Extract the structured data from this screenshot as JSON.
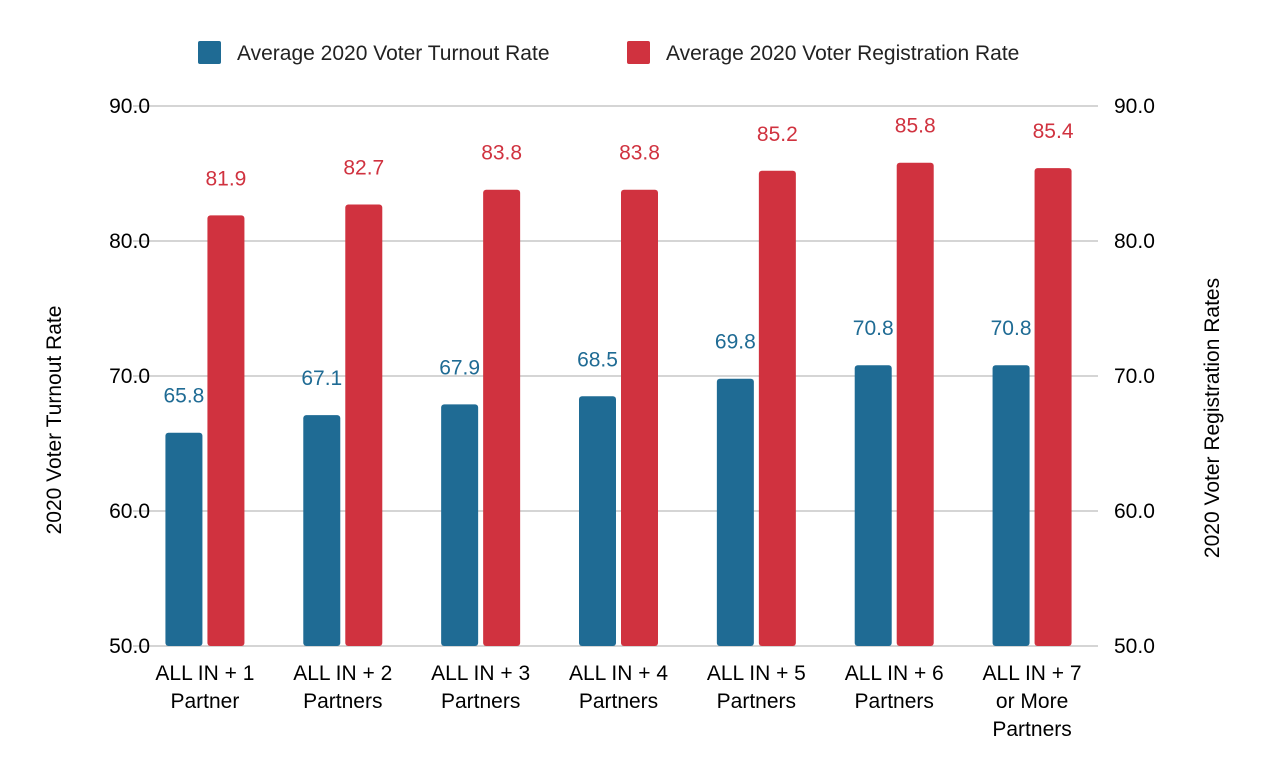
{
  "chart_data": {
    "type": "bar",
    "categories": [
      [
        "ALL IN + 1",
        "Partner"
      ],
      [
        "ALL IN + 2",
        "Partners"
      ],
      [
        "ALL IN + 3",
        "Partners"
      ],
      [
        "ALL IN + 4",
        "Partners"
      ],
      [
        "ALL IN + 5",
        "Partners"
      ],
      [
        "ALL IN + 6",
        "Partners"
      ],
      [
        "ALL IN + 7",
        "or More",
        "Partners"
      ]
    ],
    "series": [
      {
        "name": "Average 2020 Voter Turnout Rate",
        "color": "#1f6b94",
        "axis": "left",
        "values": [
          65.8,
          67.1,
          67.9,
          68.5,
          69.8,
          70.8,
          70.8
        ],
        "labels": [
          "65.8",
          "67.1",
          "67.9",
          "68.5",
          "69.8",
          "70.8",
          "70.8"
        ]
      },
      {
        "name": "Average 2020 Voter Registration Rate",
        "color": "#d0323f",
        "axis": "right",
        "values": [
          81.9,
          82.7,
          83.8,
          83.8,
          85.2,
          85.8,
          85.4
        ],
        "labels": [
          "81.9",
          "82.7",
          "83.8",
          "83.8",
          "85.2",
          "85.8",
          "85.4"
        ]
      }
    ],
    "ylabel": "2020 Voter Turnout Rate",
    "ylabel_right": "2020 Voter Registration Rates",
    "ylim": [
      50,
      90
    ],
    "ylim_right": [
      50,
      90
    ],
    "yticks": [
      "50.0",
      "60.0",
      "70.0",
      "80.0",
      "90.0"
    ],
    "grid": true,
    "legend_position": "top"
  }
}
